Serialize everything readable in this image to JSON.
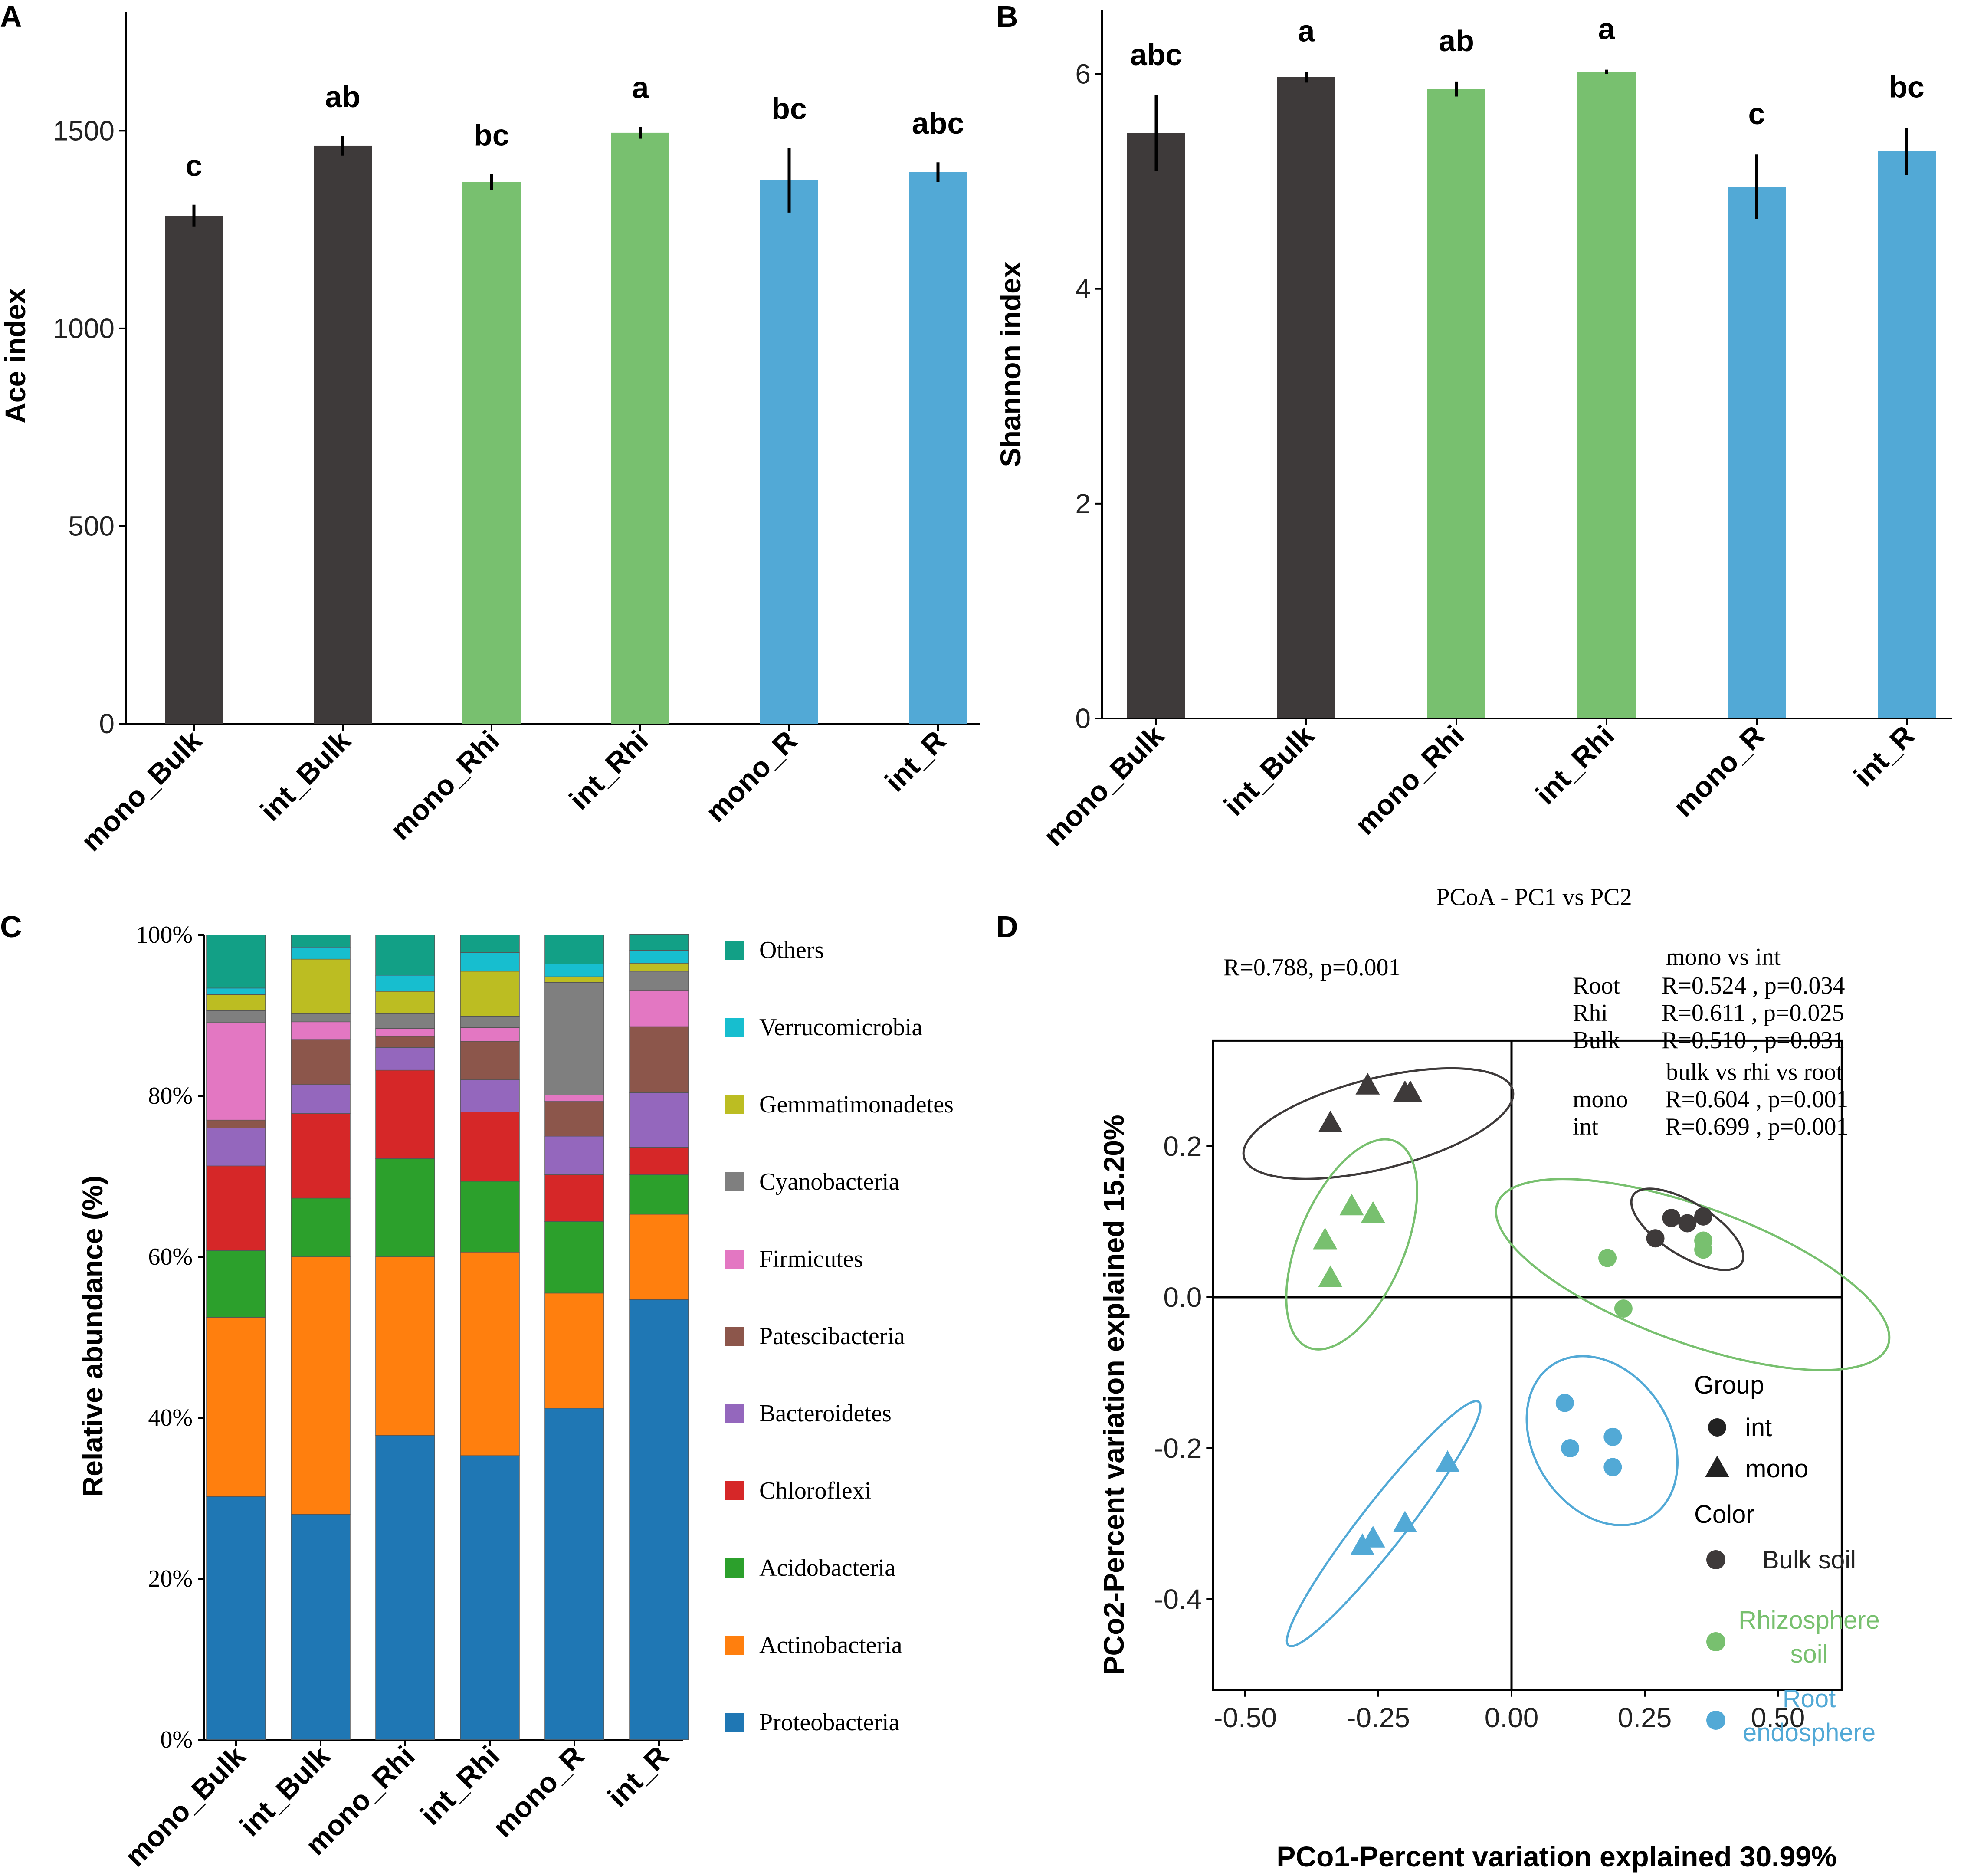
{
  "colors": {
    "bulk": "#3e3a3a",
    "rhizosphere": "#78c06f",
    "root": "#52a9d6"
  },
  "chart_data": [
    {
      "panel": "A",
      "type": "bar",
      "ylabel": "Ace index",
      "ylim": [
        0,
        1800
      ],
      "yticks": [
        0,
        500,
        1000,
        1500
      ],
      "categories": [
        "mono_Bulk",
        "int_Bulk",
        "mono_Rhi",
        "int_Rhi",
        "mono_R",
        "int_R"
      ],
      "values": [
        1285,
        1462,
        1370,
        1495,
        1375,
        1395
      ],
      "errors": [
        28,
        25,
        20,
        15,
        82,
        25
      ],
      "significance": [
        "c",
        "ab",
        "bc",
        "a",
        "bc",
        "abc"
      ],
      "bar_colors": [
        "#3e3a3a",
        "#3e3a3a",
        "#78c06f",
        "#78c06f",
        "#52a9d6",
        "#52a9d6"
      ]
    },
    {
      "panel": "B",
      "type": "bar",
      "ylabel": "Shannon index",
      "ylim": [
        0,
        6.6
      ],
      "yticks": [
        0,
        2,
        4,
        6
      ],
      "categories": [
        "mono_Bulk",
        "int_Bulk",
        "mono_Rhi",
        "int_Rhi",
        "mono_R",
        "int_R"
      ],
      "values": [
        5.45,
        5.97,
        5.86,
        6.02,
        4.95,
        5.28
      ],
      "errors": [
        0.35,
        0.05,
        0.07,
        0.02,
        0.3,
        0.22
      ],
      "significance": [
        "abc",
        "a",
        "ab",
        "a",
        "c",
        "bc"
      ],
      "bar_colors": [
        "#3e3a3a",
        "#3e3a3a",
        "#78c06f",
        "#78c06f",
        "#52a9d6",
        "#52a9d6"
      ]
    },
    {
      "panel": "C",
      "type": "bar",
      "stacked": true,
      "ylabel": "Relative abundance (%)",
      "ylim": [
        0,
        100
      ],
      "yticks": [
        "0%",
        "20%",
        "40%",
        "60%",
        "80%",
        "100%"
      ],
      "categories": [
        "mono_Bulk",
        "int_Bulk",
        "mono_Rhi",
        "int_Rhi",
        "mono_R",
        "int_R"
      ],
      "series": [
        {
          "name": "Proteobacteria",
          "color": "#1f77b4",
          "values": [
            30.2,
            28.0,
            37.8,
            35.3,
            41.2,
            54.7
          ]
        },
        {
          "name": "Actinobacteria",
          "color": "#ff7f0e",
          "values": [
            22.3,
            32.0,
            22.2,
            25.3,
            14.3,
            10.6
          ]
        },
        {
          "name": "Acidobacteria",
          "color": "#2ca02c",
          "values": [
            8.3,
            7.3,
            12.2,
            8.8,
            8.9,
            4.9
          ]
        },
        {
          "name": "Chloroflexi",
          "color": "#d62728",
          "values": [
            10.5,
            10.5,
            11.0,
            8.6,
            5.8,
            3.4
          ]
        },
        {
          "name": "Bacteroidetes",
          "color": "#9467bd",
          "values": [
            4.7,
            3.6,
            2.8,
            4.0,
            4.8,
            6.8
          ]
        },
        {
          "name": "Patescibacteria",
          "color": "#8c564b",
          "values": [
            1.0,
            5.6,
            1.4,
            4.8,
            4.3,
            8.2
          ]
        },
        {
          "name": "Firmicutes",
          "color": "#e377c2",
          "values": [
            12.1,
            2.2,
            1.0,
            1.7,
            0.8,
            4.5
          ]
        },
        {
          "name": "Cyanobacteria",
          "color": "#7f7f7f",
          "values": [
            1.5,
            1.0,
            1.8,
            1.4,
            14.0,
            2.4
          ]
        },
        {
          "name": "Gemmatimonadetes",
          "color": "#bcbd22",
          "values": [
            2.0,
            6.8,
            2.8,
            5.6,
            0.7,
            1.0
          ]
        },
        {
          "name": "Verrucomicrobia",
          "color": "#17becf",
          "values": [
            0.8,
            1.5,
            2.0,
            2.3,
            1.6,
            1.6
          ]
        },
        {
          "name": "Others",
          "color": "#12a086",
          "values": [
            6.6,
            1.5,
            5.0,
            2.2,
            3.6,
            2.0
          ]
        }
      ]
    },
    {
      "panel": "D",
      "type": "scatter",
      "title": "PCoA - PC1 vs PC2",
      "xlabel": "PCo1-Percent variation explained 30.99%",
      "ylabel": "PCo2-Percent variation explained 15.20%",
      "xlim": [
        -0.56,
        0.62
      ],
      "ylim": [
        -0.52,
        0.34
      ],
      "xticks": [
        "-0.50",
        "-0.25",
        "0.00",
        "0.25",
        "0.50"
      ],
      "yticks": [
        "-0.4",
        "-0.2",
        "0.0",
        "0.2"
      ],
      "points": [
        {
          "group": "mono",
          "color": "Bulk soil",
          "x": -0.27,
          "y": 0.28
        },
        {
          "group": "mono",
          "color": "Bulk soil",
          "x": -0.2,
          "y": 0.27
        },
        {
          "group": "mono",
          "color": "Bulk soil",
          "x": -0.19,
          "y": 0.27
        },
        {
          "group": "mono",
          "color": "Bulk soil",
          "x": -0.34,
          "y": 0.23
        },
        {
          "group": "mono",
          "color": "Rhizosphere soil",
          "x": -0.3,
          "y": 0.12
        },
        {
          "group": "mono",
          "color": "Rhizosphere soil",
          "x": -0.26,
          "y": 0.11
        },
        {
          "group": "mono",
          "color": "Rhizosphere soil",
          "x": -0.35,
          "y": 0.075
        },
        {
          "group": "mono",
          "color": "Rhizosphere soil",
          "x": -0.34,
          "y": 0.025
        },
        {
          "group": "mono",
          "color": "Root endosphere",
          "x": -0.12,
          "y": -0.22
        },
        {
          "group": "mono",
          "color": "Root endosphere",
          "x": -0.2,
          "y": -0.3
        },
        {
          "group": "mono",
          "color": "Root endosphere",
          "x": -0.26,
          "y": -0.32
        },
        {
          "group": "mono",
          "color": "Root endosphere",
          "x": -0.28,
          "y": -0.33
        },
        {
          "group": "int",
          "color": "Bulk soil",
          "x": 0.3,
          "y": 0.105
        },
        {
          "group": "int",
          "color": "Bulk soil",
          "x": 0.33,
          "y": 0.098
        },
        {
          "group": "int",
          "color": "Bulk soil",
          "x": 0.36,
          "y": 0.107
        },
        {
          "group": "int",
          "color": "Bulk soil",
          "x": 0.27,
          "y": 0.078
        },
        {
          "group": "int",
          "color": "Rhizosphere soil",
          "x": 0.36,
          "y": 0.075
        },
        {
          "group": "int",
          "color": "Rhizosphere soil",
          "x": 0.36,
          "y": 0.063
        },
        {
          "group": "int",
          "color": "Rhizosphere soil",
          "x": 0.18,
          "y": 0.052
        },
        {
          "group": "int",
          "color": "Rhizosphere soil",
          "x": 0.21,
          "y": -0.015
        },
        {
          "group": "int",
          "color": "Root endosphere",
          "x": 0.1,
          "y": -0.14
        },
        {
          "group": "int",
          "color": "Root endosphere",
          "x": 0.19,
          "y": -0.185
        },
        {
          "group": "int",
          "color": "Root endosphere",
          "x": 0.11,
          "y": -0.2
        },
        {
          "group": "int",
          "color": "Root endosphere",
          "x": 0.19,
          "y": -0.225
        }
      ],
      "ellipses": [
        {
          "color": "Bulk soil",
          "cx": -0.25,
          "cy": 0.23,
          "rx": 0.26,
          "ry": 0.06,
          "angle": 14
        },
        {
          "color": "Rhizosphere soil",
          "cx": -0.3,
          "cy": 0.07,
          "rx": 0.21,
          "ry": 0.07,
          "angle": 67
        },
        {
          "color": "Rhizosphere soil",
          "cx": 0.34,
          "cy": 0.03,
          "rx": 0.39,
          "ry": 0.09,
          "angle": -20
        },
        {
          "color": "Bulk soil",
          "cx": 0.33,
          "cy": 0.09,
          "rx": 0.12,
          "ry": 0.035,
          "angle": -32
        },
        {
          "color": "Root endosphere",
          "cx": 0.17,
          "cy": -0.19,
          "rx": 0.17,
          "ry": 0.09,
          "angle": -57
        },
        {
          "color": "Root endosphere",
          "cx": -0.24,
          "cy": -0.3,
          "rx": 0.29,
          "ry": 0.03,
          "angle": 52
        }
      ],
      "stats_overall": "R=0.788, p=0.001",
      "stats_mono_vs_int_title": "mono vs int",
      "stats_mono_vs_int": [
        {
          "label": "Root",
          "text": "R=0.524 ,  p=0.034"
        },
        {
          "label": "Rhi",
          "text": "R=0.611 ,  p=0.025"
        },
        {
          "label": "Bulk",
          "text": "R=0.510 ,  p=0.031"
        }
      ],
      "stats_compartment_title": "bulk vs rhi vs root",
      "stats_compartment": [
        {
          "label": "mono",
          "text": "R=0.604 ,  p=0.001"
        },
        {
          "label": "int",
          "text": "R=0.699 ,  p=0.001"
        }
      ],
      "legend": {
        "group_title": "Group",
        "group_items": [
          "int",
          "mono"
        ],
        "color_title": "Color",
        "color_items": [
          {
            "lines": [
              "Bulk  soil"
            ],
            "color": "#3e3a3a"
          },
          {
            "lines": [
              "Rhizosphere",
              "soil"
            ],
            "color": "#78c06f"
          },
          {
            "lines": [
              "Root",
              "endosphere"
            ],
            "color": "#52a9d6"
          }
        ]
      }
    }
  ]
}
